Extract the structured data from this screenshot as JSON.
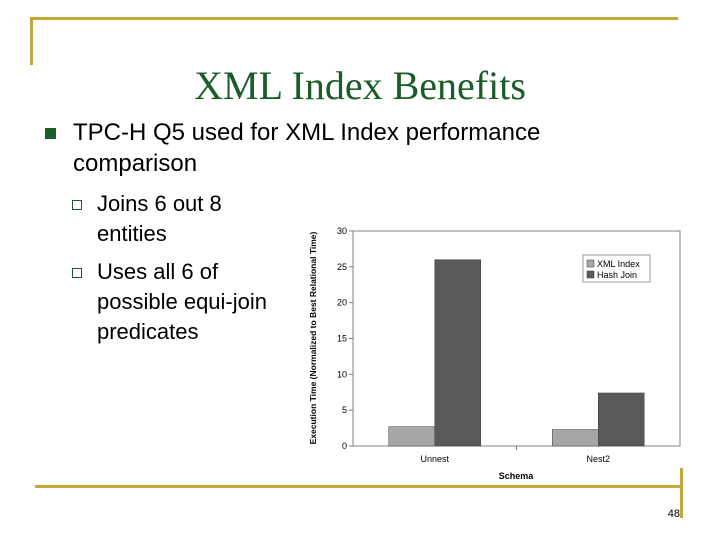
{
  "slide": {
    "title": "XML Index Benefits",
    "bullets": [
      {
        "text_line1": "TPC-H Q5 used for XML Index performance",
        "text_line2": "comparison"
      }
    ],
    "sub_bullets": [
      {
        "lines": [
          "Joins 6 out 8",
          "entities"
        ]
      },
      {
        "lines": [
          "Uses all 6 of",
          "possible equi-join",
          "predicates"
        ]
      }
    ],
    "page_number": "48"
  },
  "colors": {
    "accent_gold": "#c8a63a",
    "title_green": "#1a5c2a",
    "xml_index": "#a6a6a6",
    "hash_join": "#595959",
    "plot_bg": "#ffffff"
  },
  "chart_data": {
    "type": "bar",
    "categories": [
      "Unnest",
      "Nest2"
    ],
    "series": [
      {
        "name": "XML Index",
        "values": [
          2.7,
          2.3
        ]
      },
      {
        "name": "Hash Join",
        "values": [
          26,
          7.4
        ]
      }
    ],
    "xlabel": "Schema",
    "ylabel": "Execution Time (Normalized to Best Relational Time)",
    "ylim": [
      0,
      30
    ],
    "yticks": [
      0,
      5,
      10,
      15,
      20,
      25,
      30
    ],
    "grid": false,
    "legend": "top-right"
  }
}
